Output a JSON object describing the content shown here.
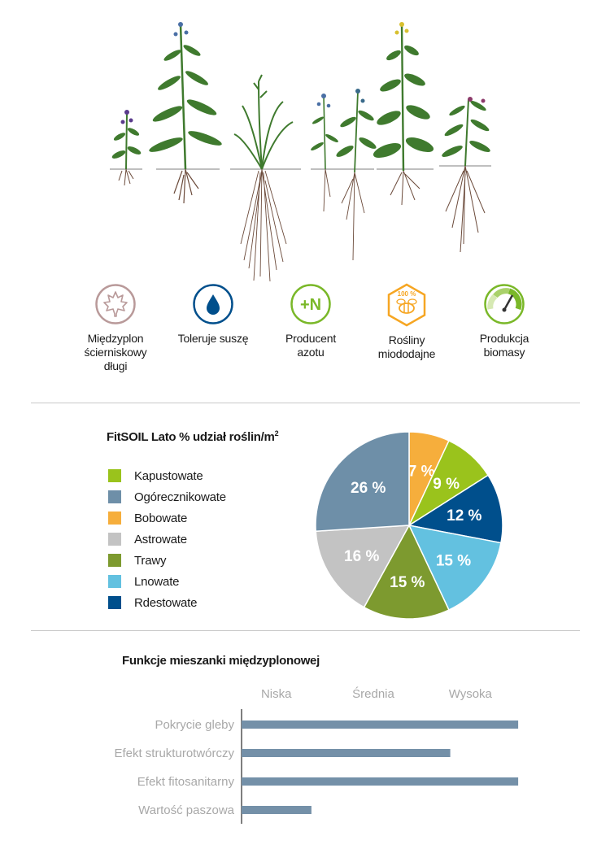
{
  "features": [
    {
      "icon": "maple-leaf-icon",
      "label": "Międzyplon\nścierniskowy\ndługi",
      "color": "#b99a9a"
    },
    {
      "icon": "water-drop-icon",
      "label": "Toleruje suszę",
      "color": "#004f8c"
    },
    {
      "icon": "plus-n-icon",
      "label": "Producent\nazotu",
      "badge_text": "+N",
      "color": "#7ab829"
    },
    {
      "icon": "bee-honey-icon",
      "label": "Rośliny\nmiododajne",
      "badge_text": "100 %",
      "color": "#f6a623"
    },
    {
      "icon": "gauge-icon",
      "label": "Produkcja\nbiomasy",
      "color": "#7ab829"
    }
  ],
  "pie_title": "FitSOIL Lato % udział roślin/m",
  "pie_title_sup": "2",
  "bar_title": "Funkcje mieszanki międzyplonowej",
  "chart_data": [
    {
      "type": "pie",
      "title": "FitSOIL Lato % udział roślin/m²",
      "legend_position": "left",
      "slices": [
        {
          "label": "Bobowate",
          "value": 7,
          "display": "7 %",
          "color": "#f6ae3c"
        },
        {
          "label": "Kapustowate",
          "value": 9,
          "display": "9 %",
          "color": "#9ac31c"
        },
        {
          "label": "Rdestowate",
          "value": 12,
          "display": "12 %",
          "color": "#004f8c"
        },
        {
          "label": "Lnowate",
          "value": 15,
          "display": "15 %",
          "color": "#63c1e0"
        },
        {
          "label": "Trawy",
          "value": 15,
          "display": "15 %",
          "color": "#7d9a2f"
        },
        {
          "label": "Astrowate",
          "value": 16,
          "display": "16 %",
          "color": "#c3c3c3"
        },
        {
          "label": "Ogórecznikowate",
          "value": 26,
          "display": "26 %",
          "color": "#6e8fa8"
        }
      ],
      "legend": [
        {
          "label": "Kapustowate",
          "color": "#9ac31c"
        },
        {
          "label": "Ogórecznikowate",
          "color": "#6e8fa8"
        },
        {
          "label": "Bobowate",
          "color": "#f6ae3c"
        },
        {
          "label": "Astrowate",
          "color": "#c3c3c3"
        },
        {
          "label": "Trawy",
          "color": "#7d9a2f"
        },
        {
          "label": "Lnowate",
          "color": "#63c1e0"
        },
        {
          "label": "Rdestowate",
          "color": "#004f8c"
        }
      ]
    },
    {
      "type": "bar",
      "orientation": "horizontal",
      "title": "Funkcje mieszanki międzyplonowej",
      "scale_labels": [
        "Niska",
        "Średnia",
        "Wysoka"
      ],
      "xlim": [
        0,
        3
      ],
      "categories": [
        "Pokrycie gleby",
        "Efekt strukturotwórczy",
        "Efekt fitosanitarny",
        "Wartość paszowa"
      ],
      "values": [
        2.85,
        2.15,
        2.85,
        0.72
      ],
      "bar_color": "#7490a8"
    }
  ]
}
